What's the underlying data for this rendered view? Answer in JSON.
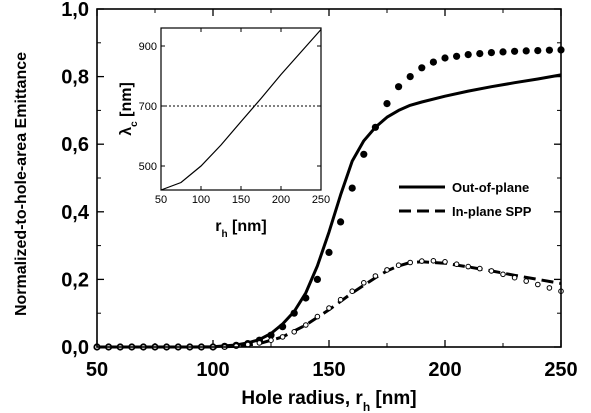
{
  "chart_data": [
    {
      "type": "line",
      "xlabel": "Hole radius, r",
      "xlabel_sub": "h",
      "xlabel_unit": " [nm]",
      "ylabel": "Normalized-to-hole-area Emittance",
      "xlim": [
        50,
        250
      ],
      "ylim": [
        0,
        1.0
      ],
      "xticks": [
        50,
        100,
        150,
        200,
        250
      ],
      "xtick_labels": [
        "50",
        "100",
        "150",
        "200",
        "250"
      ],
      "yticks": [
        0,
        0.2,
        0.4,
        0.6,
        0.8,
        1.0
      ],
      "ytick_labels": [
        "0,0",
        "0,2",
        "0,4",
        "0,6",
        "0,8",
        "1,0"
      ],
      "legend_position": "right",
      "series": [
        {
          "name": "Out-of-plane",
          "style": "solid",
          "x": [
            50,
            60,
            70,
            80,
            90,
            100,
            110,
            115,
            120,
            125,
            130,
            135,
            140,
            145,
            150,
            155,
            160,
            165,
            170,
            175,
            180,
            185,
            190,
            200,
            210,
            220,
            230,
            240,
            250
          ],
          "y": [
            0.0,
            0.0,
            0.0,
            0.0,
            0.0,
            0.001,
            0.006,
            0.012,
            0.022,
            0.04,
            0.068,
            0.105,
            0.16,
            0.24,
            0.34,
            0.45,
            0.55,
            0.61,
            0.65,
            0.68,
            0.7,
            0.715,
            0.725,
            0.742,
            0.757,
            0.77,
            0.782,
            0.793,
            0.805
          ]
        },
        {
          "name": "In-plane SPP",
          "style": "dashed",
          "x": [
            50,
            80,
            100,
            110,
            120,
            130,
            140,
            150,
            160,
            170,
            175,
            180,
            185,
            190,
            200,
            210,
            220,
            230,
            240,
            250
          ],
          "y": [
            0.0,
            0.0,
            0.0,
            0.002,
            0.01,
            0.03,
            0.065,
            0.11,
            0.16,
            0.205,
            0.225,
            0.24,
            0.25,
            0.252,
            0.248,
            0.237,
            0.225,
            0.212,
            0.2,
            0.188
          ]
        },
        {
          "name": "",
          "style": "filled-circles",
          "x": [
            50,
            55,
            60,
            65,
            70,
            75,
            80,
            85,
            90,
            95,
            100,
            105,
            110,
            115,
            120,
            125,
            130,
            135,
            140,
            145,
            150,
            155,
            160,
            165,
            170,
            175,
            180,
            185,
            190,
            195,
            200,
            205,
            210,
            215,
            220,
            225,
            230,
            235,
            240,
            245,
            250
          ],
          "y": [
            0.0,
            0.0,
            0.0,
            0.0,
            0.0,
            0.0,
            0.0,
            0.0,
            0.0,
            0.0,
            0.0,
            0.002,
            0.005,
            0.01,
            0.02,
            0.035,
            0.06,
            0.1,
            0.145,
            0.2,
            0.28,
            0.37,
            0.47,
            0.57,
            0.65,
            0.72,
            0.77,
            0.8,
            0.826,
            0.843,
            0.855,
            0.86,
            0.865,
            0.868,
            0.871,
            0.873,
            0.875,
            0.876,
            0.877,
            0.878,
            0.879
          ]
        },
        {
          "name": "",
          "style": "open-circles",
          "x": [
            50,
            55,
            60,
            65,
            70,
            75,
            80,
            85,
            90,
            95,
            100,
            105,
            110,
            115,
            120,
            125,
            130,
            135,
            140,
            145,
            150,
            155,
            160,
            165,
            170,
            175,
            180,
            185,
            190,
            195,
            200,
            205,
            210,
            215,
            220,
            225,
            230,
            235,
            240,
            245,
            250
          ],
          "y": [
            0.0,
            0.0,
            0.0,
            0.0,
            0.0,
            0.0,
            0.0,
            0.0,
            0.0,
            0.0,
            0.0,
            0.0,
            0.003,
            0.007,
            0.012,
            0.02,
            0.03,
            0.045,
            0.065,
            0.09,
            0.115,
            0.14,
            0.165,
            0.19,
            0.21,
            0.228,
            0.242,
            0.25,
            0.254,
            0.255,
            0.252,
            0.245,
            0.238,
            0.232,
            0.225,
            0.215,
            0.205,
            0.195,
            0.185,
            0.175,
            0.165
          ]
        }
      ]
    },
    {
      "type": "line",
      "xlabel": "r",
      "xlabel_sub": "h",
      "xlabel_unit": " [nm]",
      "ylabel": "λ",
      "ylabel_sub": "c",
      "ylabel_unit": " [nm]",
      "xlim": [
        50,
        250
      ],
      "ylim": [
        420,
        960
      ],
      "xticks": [
        50,
        100,
        150,
        200,
        250
      ],
      "xtick_labels": [
        "50",
        "100",
        "150",
        "200",
        "250"
      ],
      "yticks": [
        500,
        700,
        900
      ],
      "ytick_labels": [
        "500",
        "700",
        "900"
      ],
      "reference_line": {
        "y": 700,
        "style": "dotted"
      },
      "series": [
        {
          "name": "",
          "x": [
            50,
            75,
            100,
            125,
            150,
            175,
            200,
            225,
            250
          ],
          "y": [
            420,
            445,
            500,
            570,
            648,
            725,
            805,
            880,
            955
          ]
        }
      ]
    }
  ]
}
